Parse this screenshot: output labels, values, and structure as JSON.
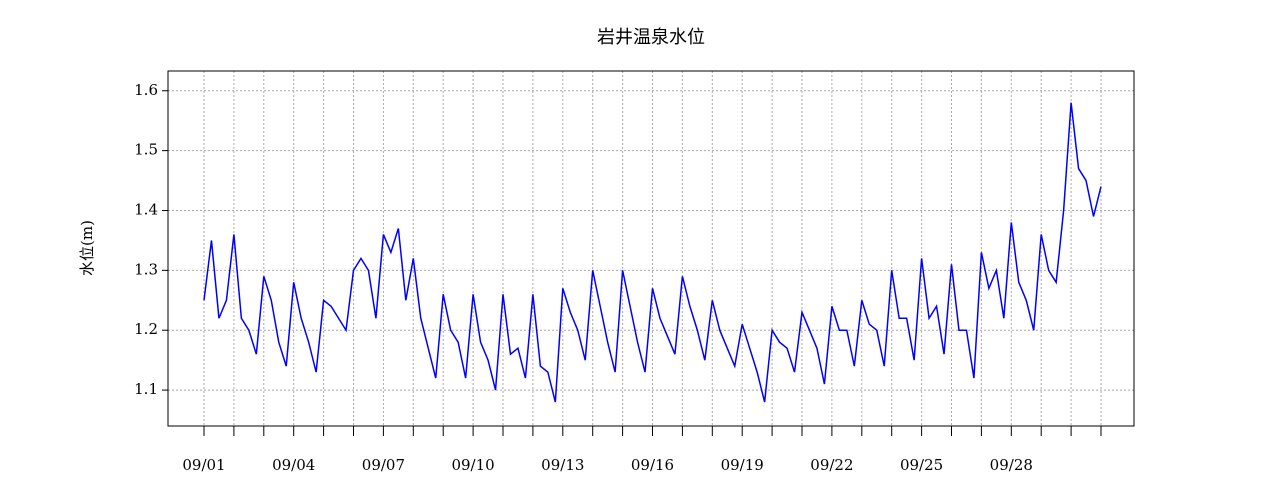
{
  "chart_data": {
    "type": "line",
    "title": "岩井温泉水位",
    "y_label": "水位(m)",
    "categories": [
      "09/01",
      null,
      null,
      null,
      null,
      null,
      null,
      null,
      null,
      null,
      null,
      null,
      "09/04",
      null,
      null,
      null,
      null,
      null,
      null,
      null,
      null,
      null,
      null,
      null,
      "09/07",
      null,
      null,
      null,
      null,
      null,
      null,
      null,
      null,
      null,
      null,
      null,
      "09/10",
      null,
      null,
      null,
      null,
      null,
      null,
      null,
      null,
      null,
      null,
      null,
      "09/13",
      null,
      null,
      null,
      null,
      null,
      null,
      null,
      null,
      null,
      null,
      null,
      "09/16",
      null,
      null,
      null,
      null,
      null,
      null,
      null,
      null,
      null,
      null,
      null,
      "09/19",
      null,
      null,
      null,
      null,
      null,
      null,
      null,
      null,
      null,
      null,
      null,
      "09/22",
      null,
      null,
      null,
      null,
      null,
      null,
      null,
      null,
      null,
      null,
      null,
      "09/25",
      null,
      null,
      null,
      null,
      null,
      null,
      null,
      null,
      null,
      null,
      null,
      "09/28",
      null,
      null,
      null,
      null,
      null,
      null,
      null,
      null,
      null,
      null,
      null,
      null
    ],
    "series": [
      {
        "color": "#0000ff",
        "values": [
          1.25,
          1.35,
          1.22,
          1.25,
          1.36,
          1.22,
          1.2,
          1.16,
          1.29,
          1.25,
          1.18,
          1.14,
          1.28,
          1.22,
          1.18,
          1.13,
          1.25,
          1.24,
          1.22,
          1.2,
          1.3,
          1.32,
          1.3,
          1.22,
          1.36,
          1.33,
          1.37,
          1.25,
          1.32,
          1.22,
          1.17,
          1.12,
          1.26,
          1.2,
          1.18,
          1.12,
          1.26,
          1.18,
          1.15,
          1.1,
          1.26,
          1.16,
          1.17,
          1.12,
          1.26,
          1.14,
          1.13,
          1.08,
          1.27,
          1.23,
          1.2,
          1.15,
          1.3,
          1.24,
          1.18,
          1.13,
          1.3,
          1.24,
          1.18,
          1.13,
          1.27,
          1.22,
          1.19,
          1.16,
          1.29,
          1.24,
          1.2,
          1.15,
          1.25,
          1.2,
          1.17,
          1.14,
          1.21,
          1.17,
          1.13,
          1.08,
          1.2,
          1.18,
          1.17,
          1.13,
          1.23,
          1.2,
          1.17,
          1.11,
          1.24,
          1.2,
          1.2,
          1.14,
          1.25,
          1.21,
          1.2,
          1.14,
          1.3,
          1.22,
          1.22,
          1.15,
          1.32,
          1.22,
          1.24,
          1.16,
          1.31,
          1.2,
          1.2,
          1.12,
          1.33,
          1.27,
          1.3,
          1.22,
          1.38,
          1.28,
          1.25,
          1.2,
          1.36,
          1.3,
          1.28,
          1.4,
          1.58,
          1.47,
          1.45,
          1.39,
          1.44
        ]
      }
    ],
    "ylim": [
      1.04,
      1.633
    ],
    "yticks": [
      1.1,
      1.2,
      1.3,
      1.4,
      1.5,
      1.6
    ],
    "grid": true
  }
}
